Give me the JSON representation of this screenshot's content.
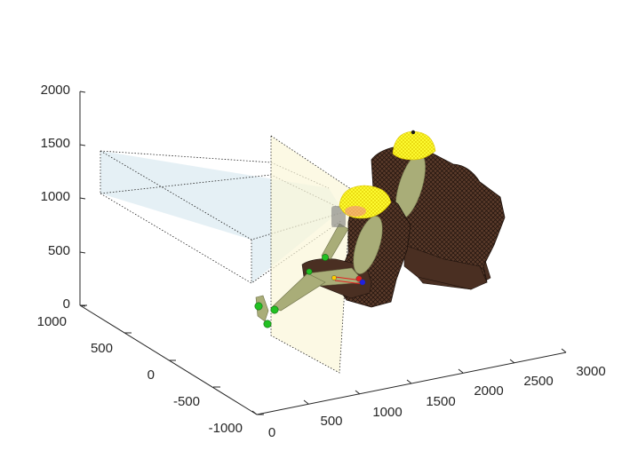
{
  "figure": {
    "z_ticks": [
      "0",
      "500",
      "1000",
      "1500",
      "2000"
    ],
    "y_ticks": [
      "1000",
      "500",
      "0",
      "-500",
      "-1000"
    ],
    "x_ticks": [
      "0",
      "500",
      "1000",
      "1500",
      "2000",
      "2500",
      "3000"
    ],
    "colors": {
      "seat_fill": "#5a3a2a",
      "seat_mesh": "#1e120c",
      "helmet_fill": "#ffff33",
      "helmet_mesh": "#e0c800",
      "body_fill": "#a9ad78",
      "view_volume": "#cfe3ec",
      "foot_plane": "#fbf6d8",
      "marker_green": "#22c022",
      "marker_red": "#e02020",
      "marker_blue": "#2020e0"
    }
  }
}
